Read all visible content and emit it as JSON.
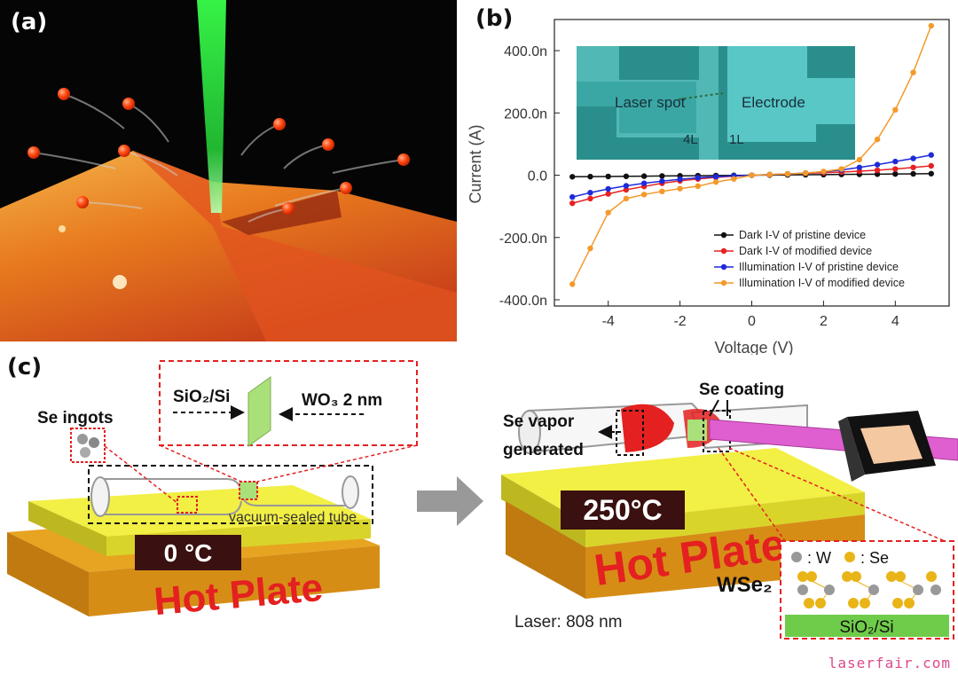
{
  "panel_a": {
    "label": "(a)"
  },
  "panel_b": {
    "label": "(b)",
    "inset": {
      "left_label": "Laser spot",
      "right_label": "Electrode",
      "layer_left": "4L",
      "layer_right": "1L"
    }
  },
  "panel_c": {
    "label": "(c)",
    "left": {
      "se_ingots": "Se ingots",
      "substrate": "SiO₂/Si",
      "film": "WO₃ 2 nm",
      "tube": "vacuum-sealed tube",
      "temperature": "0 °C",
      "hot_plate": "Hot Plate"
    },
    "right": {
      "se_coating": "Se coating",
      "se_vapor_1": "Se vapor",
      "se_vapor_2": "generated",
      "temperature": "250°C",
      "hot_plate": "Hot Plate",
      "laser": "Laser: 808 nm",
      "legend_w": ": W",
      "legend_se": ": Se",
      "product": "WSe₂",
      "substrate": "SiO₂/Si"
    }
  },
  "watermark": "laserfair.com",
  "colors": {
    "dark_pristine": "#111111",
    "dark_modified": "#e52222",
    "illum_pristine": "#1f2bd8",
    "illum_modified": "#f39a2b"
  },
  "chart_data": {
    "type": "line",
    "xlabel": "Voltage (V)",
    "ylabel": "Current (A)",
    "xlim": [
      -5.5,
      5.5
    ],
    "ylim": [
      -420,
      500
    ],
    "x_ticks": [
      -4,
      -2,
      0,
      2,
      4
    ],
    "x_tick_labels": [
      "-4",
      "-2",
      "0",
      "2",
      "4"
    ],
    "y_ticks": [
      -400,
      -200,
      0,
      200,
      400
    ],
    "y_tick_labels": [
      "-400.0n",
      "-200.0n",
      "0.0",
      "200.0n",
      "400.0n"
    ],
    "y_unit": "nA",
    "legend_position": "bottom-right",
    "x": [
      -5.0,
      -4.5,
      -4.0,
      -3.5,
      -3.0,
      -2.5,
      -2.0,
      -1.5,
      -1.0,
      -0.5,
      0.0,
      0.5,
      1.0,
      1.5,
      2.0,
      2.5,
      3.0,
      3.5,
      4.0,
      4.5,
      5.0
    ],
    "series": [
      {
        "name": "Dark I-V of pristine device",
        "color": "#111111",
        "values": [
          -5,
          -4.5,
          -4,
          -3.5,
          -3,
          -2.5,
          -2,
          -1.5,
          -1,
          -0.5,
          0,
          0.5,
          1,
          1.5,
          2,
          2.5,
          3,
          3.5,
          4,
          4.5,
          5
        ]
      },
      {
        "name": "Dark I-V of modified device",
        "color": "#e52222",
        "values": [
          -90,
          -75,
          -60,
          -47,
          -36,
          -26,
          -18,
          -12,
          -7,
          -3,
          0,
          2,
          4,
          6,
          8,
          10,
          13,
          16,
          20,
          25,
          30
        ]
      },
      {
        "name": "Illumination I-V of pristine device",
        "color": "#1f2bd8",
        "values": [
          -70,
          -56,
          -44,
          -34,
          -26,
          -19,
          -13,
          -8,
          -5,
          -2,
          0,
          2,
          4,
          7,
          11,
          17,
          25,
          34,
          44,
          54,
          65
        ]
      },
      {
        "name": "Illumination I-V of modified device",
        "color": "#f39a2b",
        "values": [
          -350,
          -235,
          -120,
          -75,
          -62,
          -52,
          -43,
          -35,
          -22,
          -12,
          0,
          2,
          4,
          7,
          12,
          20,
          50,
          115,
          210,
          330,
          480
        ]
      }
    ]
  }
}
